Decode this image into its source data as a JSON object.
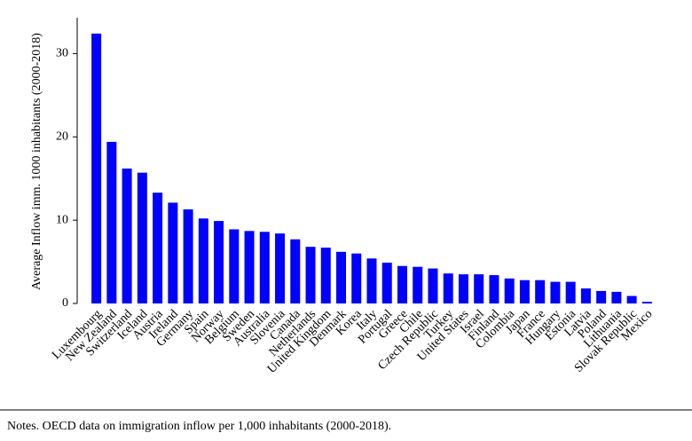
{
  "chart_data": {
    "type": "bar",
    "y_label": "Average Inflow imm. 1000 inhabitants (2000-2018)",
    "categories": [
      "Luxembourg",
      "New Zealand",
      "Switzerland",
      "Iceland",
      "Austria",
      "Ireland",
      "Germany",
      "Spain",
      "Norway",
      "Belgium",
      "Sweden",
      "Australia",
      "Slovenia",
      "Canada",
      "Netherlands",
      "United Kingdom",
      "Denmark",
      "Korea",
      "Italy",
      "Portugal",
      "Greece",
      "Chile",
      "Czech Republic",
      "Turkey",
      "United States",
      "Israel",
      "Finland",
      "Colombia",
      "Japan",
      "France",
      "Hungary",
      "Estonia",
      "Latvia",
      "Poland",
      "Lithuania",
      "Slovak Republic",
      "Mexico"
    ],
    "values": [
      32.4,
      19.4,
      16.2,
      15.7,
      13.3,
      12.1,
      11.3,
      10.2,
      9.9,
      8.9,
      8.7,
      8.6,
      8.4,
      7.7,
      6.8,
      6.7,
      6.2,
      6.0,
      5.4,
      4.9,
      4.5,
      4.4,
      4.2,
      3.6,
      3.5,
      3.5,
      3.4,
      3.0,
      2.8,
      2.8,
      2.6,
      2.6,
      1.8,
      1.5,
      1.4,
      0.9,
      0.2
    ],
    "color": "#0000ff",
    "ylim": [
      0,
      34.3
    ],
    "yticks": [
      0,
      10,
      20,
      30
    ],
    "grid": false
  },
  "notes": "Notes. OECD data on immigration inflow per 1,000 inhabitants (2000-2018)."
}
